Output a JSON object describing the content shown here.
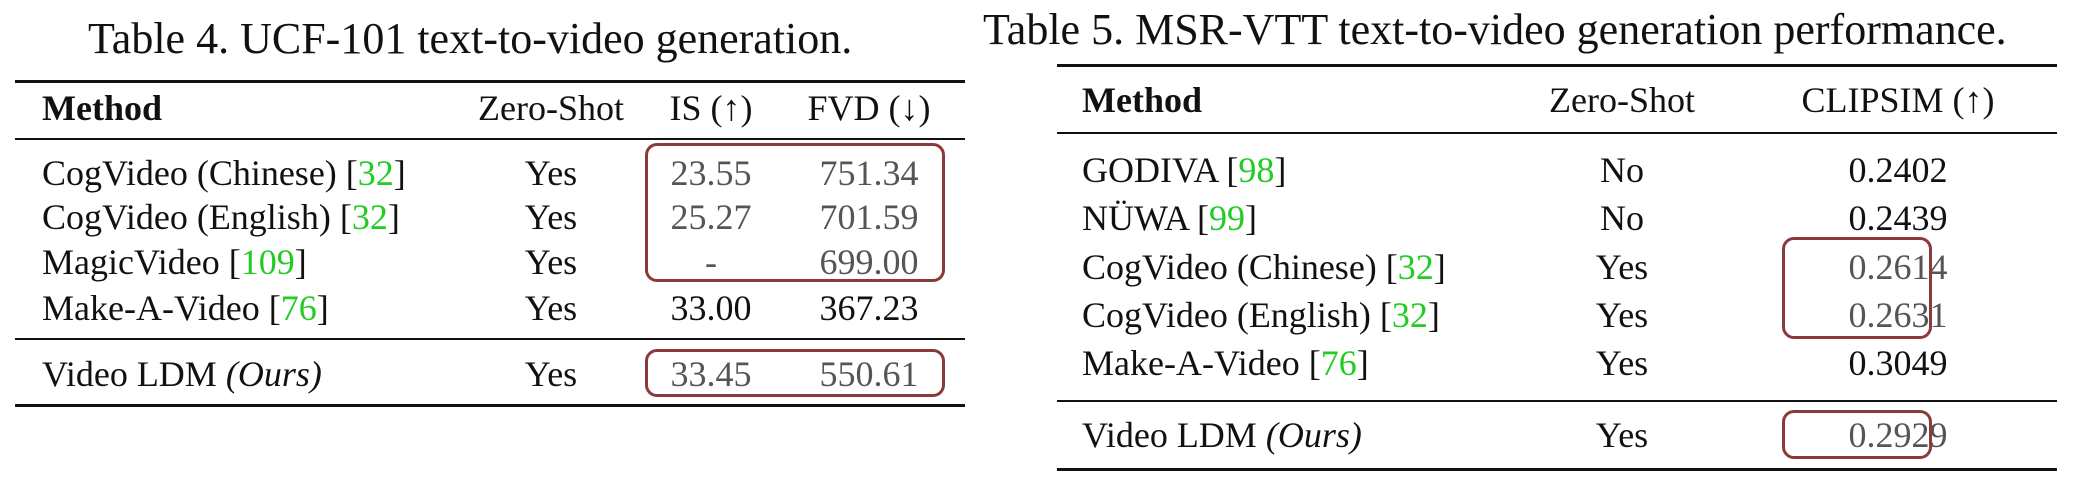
{
  "table4": {
    "caption": "Table 4. UCF-101 text-to-video generation.",
    "headers": {
      "method": "Method",
      "zero_shot": "Zero-Shot",
      "is": "IS (↑)",
      "fvd": "FVD (↓)"
    },
    "rows": [
      {
        "method": "CogVideo (Chinese) ",
        "ref": "32",
        "zero_shot": "Yes",
        "is": "23.55",
        "fvd": "751.34"
      },
      {
        "method": "CogVideo (English) ",
        "ref": "32",
        "zero_shot": "Yes",
        "is": "25.27",
        "fvd": "701.59"
      },
      {
        "method": "MagicVideo ",
        "ref": "109",
        "zero_shot": "Yes",
        "is": "-",
        "fvd": "699.00"
      },
      {
        "method": "Make-A-Video ",
        "ref": "76",
        "zero_shot": "Yes",
        "is": "33.00",
        "fvd": "367.23"
      }
    ],
    "ours": {
      "method": "Video LDM ",
      "method_italic": "(Ours)",
      "zero_shot": "Yes",
      "is": "33.45",
      "fvd": "550.61"
    }
  },
  "table5": {
    "caption": "Table 5. MSR-VTT text-to-video generation performance.",
    "headers": {
      "method": "Method",
      "zero_shot": "Zero-Shot",
      "clipsim": "CLIPSIM (↑)"
    },
    "rows": [
      {
        "method": "GODIVA ",
        "ref": "98",
        "zero_shot": "No",
        "clipsim": "0.2402"
      },
      {
        "method": "NÜWA ",
        "ref": "99",
        "zero_shot": "No",
        "clipsim": "0.2439"
      },
      {
        "method": "CogVideo (Chinese) ",
        "ref": "32",
        "zero_shot": "Yes",
        "clipsim": "0.2614"
      },
      {
        "method": "CogVideo (English) ",
        "ref": "32",
        "zero_shot": "Yes",
        "clipsim": "0.2631"
      },
      {
        "method": "Make-A-Video ",
        "ref": "76",
        "zero_shot": "Yes",
        "clipsim": "0.3049"
      }
    ],
    "ours": {
      "method": "Video LDM ",
      "method_italic": "(Ours)",
      "zero_shot": "Yes",
      "clipsim": "0.2929"
    }
  },
  "colors": {
    "citation": "#22cc22",
    "highlight_box": "#8b3a3a",
    "muted_text": "#555555"
  }
}
